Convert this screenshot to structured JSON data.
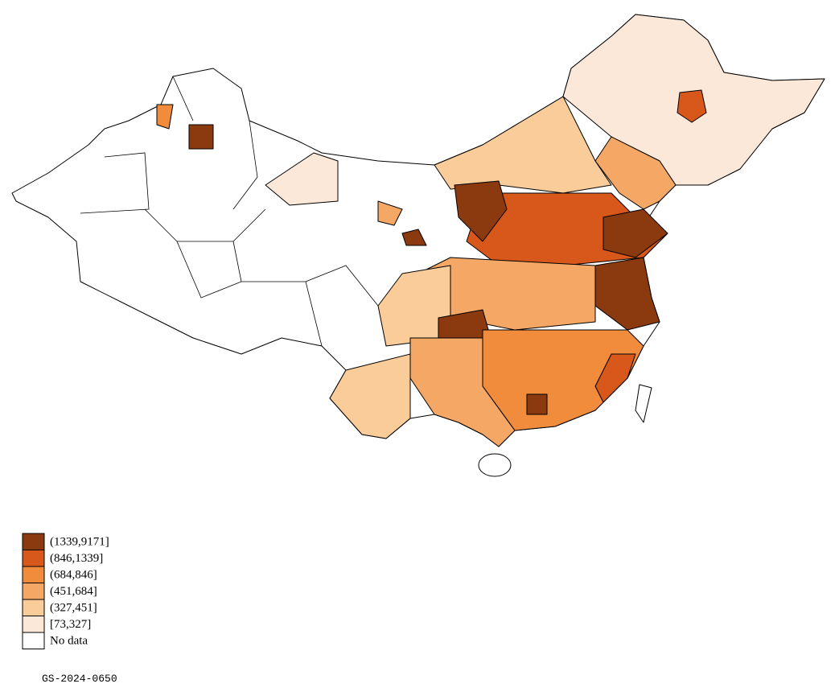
{
  "legend": {
    "items": [
      {
        "label": "(1339,9171]",
        "color": "#8b3a10"
      },
      {
        "label": "(846,1339]",
        "color": "#d8571a"
      },
      {
        "label": "(684,846]",
        "color": "#f08c3c"
      },
      {
        "label": "(451,684]",
        "color": "#f5a865"
      },
      {
        "label": "(327,451]",
        "color": "#f9cc9a"
      },
      {
        "label": "[73,327]",
        "color": "#fce8d8"
      },
      {
        "label": "No data",
        "color": "#ffffff"
      }
    ]
  },
  "map_code": "GS-2024-0650"
}
